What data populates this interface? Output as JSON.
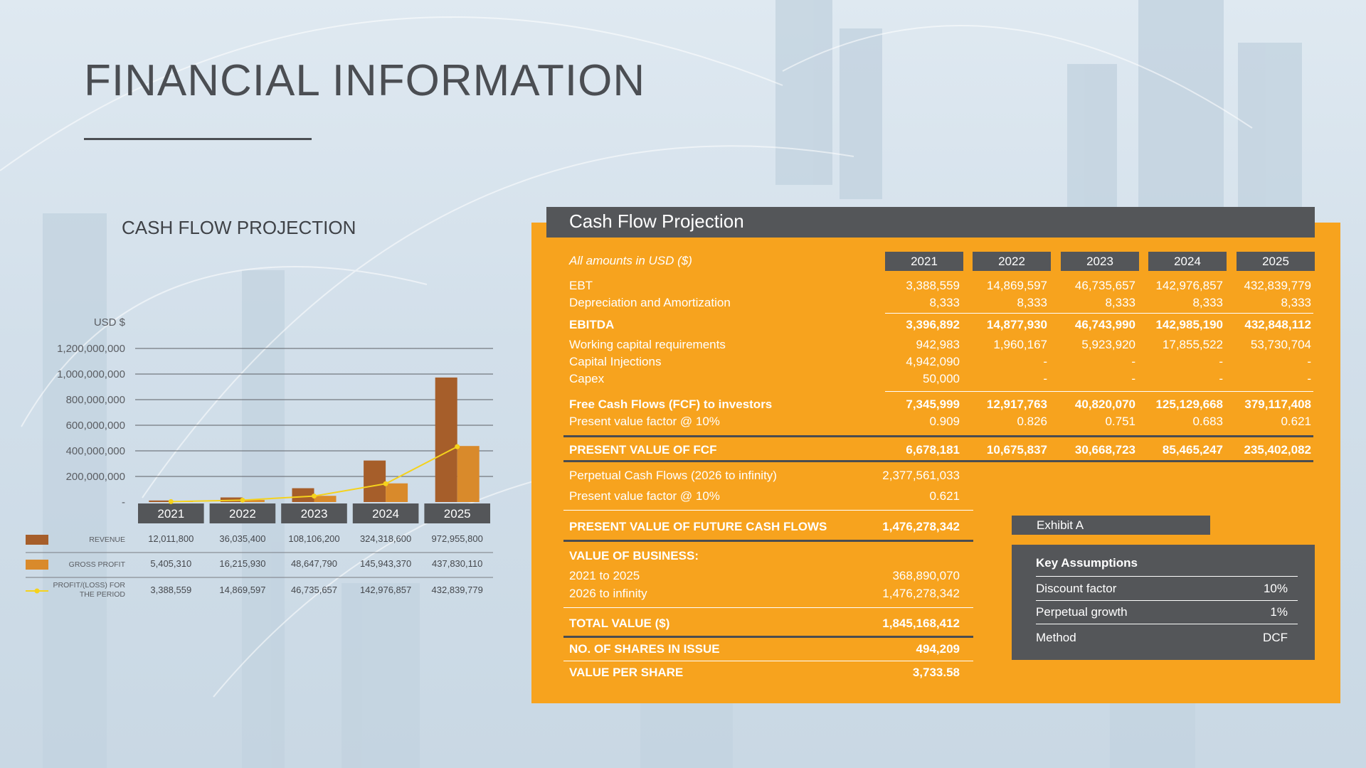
{
  "slide": {
    "title": "FINANCIAL INFORMATION",
    "chart_heading": "CASH FLOW PROJECTION"
  },
  "chart_data": {
    "type": "bar",
    "title": "CASH FLOW PROJECTION",
    "ylabel": "USD $",
    "categories": [
      "2021",
      "2022",
      "2023",
      "2024",
      "2025"
    ],
    "ylim": [
      0,
      1200000000
    ],
    "yticks": [
      "1,200,000,000",
      "1,000,000,000",
      "800,000,000",
      "600,000,000",
      "400,000,000",
      "200,000,000",
      "-"
    ],
    "ytick_values": [
      1200000000,
      1000000000,
      800000000,
      600000000,
      400000000,
      200000000,
      0
    ],
    "grid": true,
    "series": [
      {
        "name": "REVENUE",
        "kind": "bar",
        "color": "#a65e2a",
        "values": [
          12011800,
          36035400,
          108106200,
          324318600,
          972955800
        ],
        "labels": [
          "12,011,800",
          "36,035,400",
          "108,106,200",
          "324,318,600",
          "972,955,800"
        ]
      },
      {
        "name": "GROSS PROFIT",
        "kind": "bar",
        "color": "#d98a2b",
        "values": [
          5405310,
          16215930,
          48647790,
          145943370,
          437830110
        ],
        "labels": [
          "5,405,310",
          "16,215,930",
          "48,647,790",
          "145,943,370",
          "437,830,110"
        ]
      },
      {
        "name": "PROFIT/(LOSS) FOR THE PERIOD",
        "name_lines": [
          "PROFIT/(LOSS) FOR",
          "THE PERIOD"
        ],
        "kind": "line",
        "color": "#f5d21c",
        "values": [
          3388559,
          14869597,
          46735657,
          142976857,
          432839779
        ],
        "labels": [
          "3,388,559",
          "14,869,597",
          "46,735,657",
          "142,976,857",
          "432,839,779"
        ]
      }
    ]
  },
  "table": {
    "header": "Cash Flow Projection",
    "units_note": "All amounts in USD ($)",
    "years": [
      "2021",
      "2022",
      "2023",
      "2024",
      "2025"
    ],
    "rows": [
      {
        "label": "EBT",
        "values": [
          "3,388,559",
          "14,869,597",
          "46,735,657",
          "142,976,857",
          "432,839,779"
        ]
      },
      {
        "label": "Depreciation and Amortization",
        "values": [
          "8,333",
          "8,333",
          "8,333",
          "8,333",
          "8,333"
        ]
      },
      {
        "label": "EBITDA",
        "values": [
          "3,396,892",
          "14,877,930",
          "46,743,990",
          "142,985,190",
          "432,848,112"
        ]
      },
      {
        "label": "Working capital requirements",
        "values": [
          "942,983",
          "1,960,167",
          "5,923,920",
          "17,855,522",
          "53,730,704"
        ]
      },
      {
        "label": "Capital Injections",
        "values": [
          "4,942,090",
          "-",
          "-",
          "-",
          "-"
        ]
      },
      {
        "label": "Capex",
        "values": [
          "50,000",
          "-",
          "-",
          "-",
          "-"
        ]
      },
      {
        "label": "Free Cash Flows (FCF) to investors",
        "values": [
          "7,345,999",
          "12,917,763",
          "40,820,070",
          "125,129,668",
          "379,117,408"
        ]
      },
      {
        "label": "Present value factor @ 10%",
        "values": [
          "0.909",
          "0.826",
          "0.751",
          "0.683",
          "0.621"
        ]
      },
      {
        "label": "PRESENT VALUE OF FCF",
        "values": [
          "6,678,181",
          "10,675,837",
          "30,668,723",
          "85,465,247",
          "235,402,082"
        ]
      }
    ],
    "perpetual": {
      "label": "Perpetual Cash Flows (2026 to infinity)",
      "value": "2,377,561,033"
    },
    "perpetual_factor": {
      "label": "Present value factor @ 10%",
      "value": "0.621"
    },
    "pv_future": {
      "label": "PRESENT VALUE OF FUTURE CASH FLOWS",
      "value": "1,476,278,342"
    },
    "value_of_business": {
      "label": "VALUE OF BUSINESS:",
      "items": [
        {
          "label": "2021 to 2025",
          "value": "368,890,070"
        },
        {
          "label": "2026 to infinity",
          "value": "1,476,278,342"
        }
      ]
    },
    "total_value": {
      "label": "TOTAL VALUE ($)",
      "value": "1,845,168,412"
    },
    "shares": {
      "label": "NO. OF SHARES IN ISSUE",
      "value": "494,209"
    },
    "value_per_share": {
      "label": "VALUE PER SHARE",
      "value": "3,733.58"
    }
  },
  "exhibit": {
    "label": "Exhibit A",
    "title": "Key Assumptions",
    "items": [
      {
        "label": "Discount factor",
        "value": "10%"
      },
      {
        "label": "Perpetual growth",
        "value": "1%"
      },
      {
        "label": "Method",
        "value": "DCF"
      }
    ]
  },
  "colors": {
    "panel": "#f7a31e",
    "dark": "#545659",
    "revenue": "#a65e2a",
    "gross": "#d98a2b",
    "profit": "#f5d21c"
  }
}
